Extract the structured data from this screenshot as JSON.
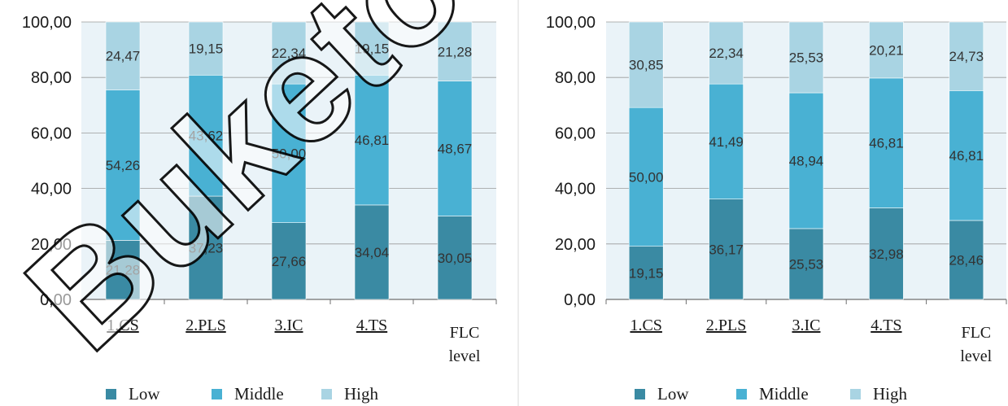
{
  "colors": {
    "low": "#3a8aa3",
    "middle": "#49b1d3",
    "high": "#a9d4e3",
    "plot_bg": "#eaf3f8",
    "grid": "#7f7f7f"
  },
  "watermark": "Buketov",
  "chart_data": [
    {
      "type": "bar",
      "stacked": true,
      "categories": [
        "1.CS",
        "2.PLS",
        "3.IC",
        "4.TS",
        "FLC level"
      ],
      "series": [
        {
          "name": "Low",
          "values": [
            21.28,
            37.23,
            27.66,
            34.04,
            30.05
          ],
          "labels": [
            "21,28",
            "37,23",
            "27,66",
            "34,04",
            "30,05"
          ]
        },
        {
          "name": "Middle",
          "values": [
            54.26,
            43.62,
            50.0,
            46.81,
            48.67
          ],
          "labels": [
            "54,26",
            "43,62",
            "50,00",
            "46,81",
            "48,67"
          ]
        },
        {
          "name": "High",
          "values": [
            24.47,
            19.15,
            22.34,
            19.15,
            21.28
          ],
          "labels": [
            "24,47",
            "19,15",
            "22,34",
            "19,15",
            "21,28"
          ]
        }
      ],
      "yticks": [
        "0,00",
        "20,00",
        "40,00",
        "60,00",
        "80,00",
        "100,00"
      ],
      "ylim": [
        0,
        100
      ],
      "legend": "bottom"
    },
    {
      "type": "bar",
      "stacked": true,
      "categories": [
        "1.CS",
        "2.PLS",
        "3.IC",
        "4.TS",
        "FLC level"
      ],
      "series": [
        {
          "name": "Low",
          "values": [
            19.15,
            36.17,
            25.53,
            32.98,
            28.46
          ],
          "labels": [
            "19,15",
            "36,17",
            "25,53",
            "32,98",
            "28,46"
          ]
        },
        {
          "name": "Middle",
          "values": [
            50.0,
            41.49,
            48.94,
            46.81,
            46.81
          ],
          "labels": [
            "50,00",
            "41,49",
            "48,94",
            "46,81",
            "46,81"
          ]
        },
        {
          "name": "High",
          "values": [
            30.85,
            22.34,
            25.53,
            20.21,
            24.73
          ],
          "labels": [
            "30,85",
            "22,34",
            "25,53",
            "20,21",
            "24,73"
          ]
        }
      ],
      "yticks": [
        "0,00",
        "20,00",
        "40,00",
        "60,00",
        "80,00",
        "100,00"
      ],
      "ylim": [
        0,
        100
      ],
      "legend": "bottom"
    }
  ]
}
